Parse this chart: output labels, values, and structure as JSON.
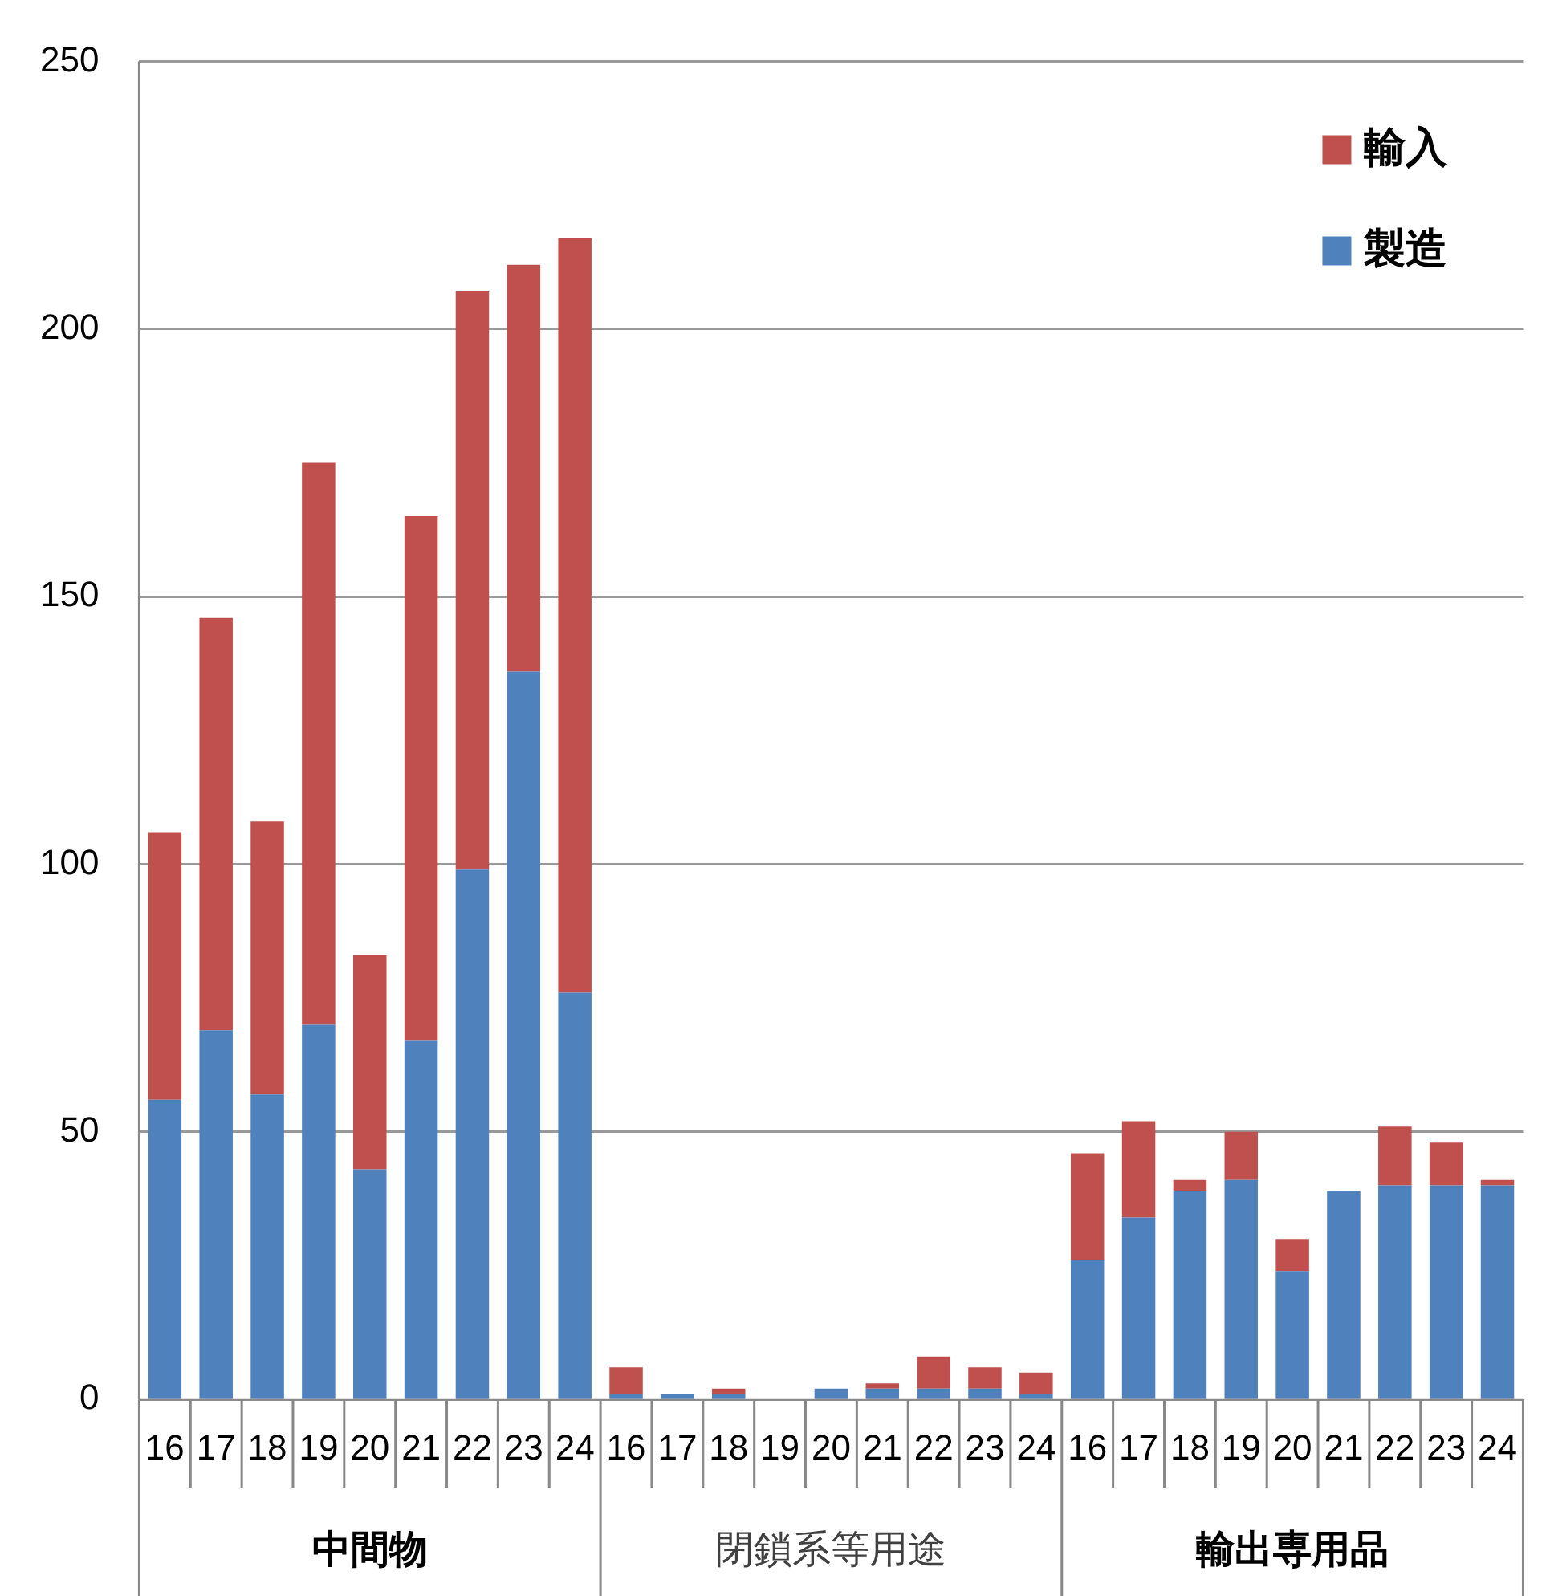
{
  "chart_data": {
    "type": "bar",
    "stacked": true,
    "categories": [
      "16",
      "17",
      "18",
      "19",
      "20",
      "21",
      "22",
      "23",
      "24",
      "16",
      "17",
      "18",
      "19",
      "20",
      "21",
      "22",
      "23",
      "24",
      "16",
      "17",
      "18",
      "19",
      "20",
      "21",
      "22",
      "23",
      "24"
    ],
    "series": [
      {
        "name": "製造",
        "color": "#4f81bd",
        "values": [
          56,
          69,
          57,
          70,
          43,
          67,
          99,
          136,
          76,
          1,
          1,
          1,
          0,
          2,
          2,
          2,
          2,
          1,
          26,
          34,
          39,
          41,
          24,
          39,
          40,
          40,
          40
        ]
      },
      {
        "name": "輸入",
        "color": "#c0504d",
        "values": [
          50,
          77,
          51,
          105,
          40,
          98,
          108,
          76,
          141,
          5,
          0,
          1,
          0,
          0,
          1,
          6,
          4,
          4,
          20,
          18,
          2,
          9,
          6,
          0,
          11,
          8,
          1
        ]
      }
    ],
    "annotations": [
      "中間物",
      "閉鎖系等用途",
      "輸出専用品"
    ],
    "ylim": [
      0,
      250
    ],
    "yticks": [
      0,
      50,
      100,
      150,
      200,
      250
    ],
    "grid": "y",
    "legend": "top right"
  }
}
